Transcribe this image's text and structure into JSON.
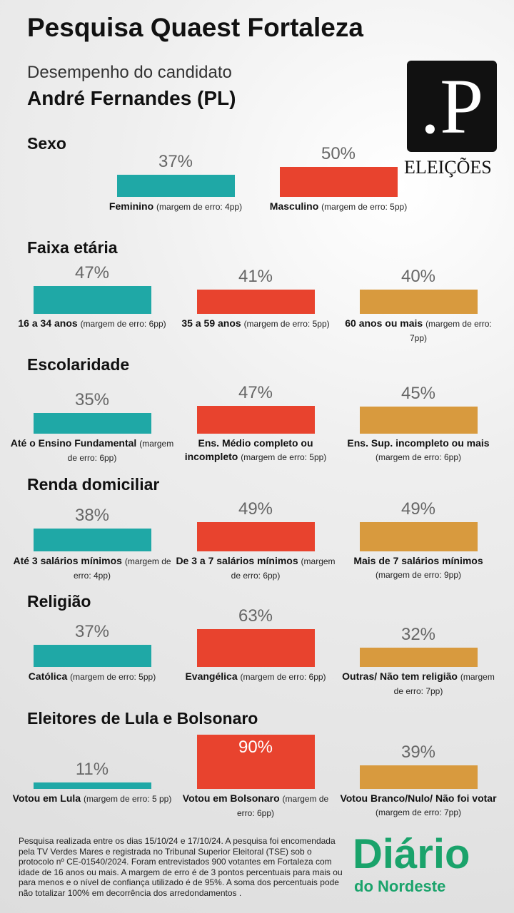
{
  "header": {
    "title": "Pesquisa Quaest Fortaleza",
    "subtitle": "Desempenho do candidato",
    "candidate": "André Fernandes (PL)",
    "logo_mark": ".P",
    "logo_text": "ELEIÇÕES"
  },
  "chart_data": [
    {
      "type": "bar",
      "title": "Sexo",
      "categories": [
        "Feminino",
        "Masculino"
      ],
      "notes": [
        "(margem de erro: 4pp)",
        "(margem de erro: 5pp)"
      ],
      "values": [
        37,
        50
      ],
      "value_labels": [
        "37%",
        "50%"
      ],
      "colors": [
        "#1fa8a6",
        "#e8432e"
      ]
    },
    {
      "type": "bar",
      "title": "Faixa etária",
      "categories": [
        "16 a 34 anos",
        "35 a 59 anos",
        "60 anos ou mais"
      ],
      "notes": [
        "(margem de erro: 6pp)",
        "(margem de erro: 5pp)",
        "(margem de erro: 7pp)"
      ],
      "values": [
        47,
        41,
        40
      ],
      "value_labels": [
        "47%",
        "41%",
        "40%"
      ],
      "colors": [
        "#1fa8a6",
        "#e8432e",
        "#d89a3e"
      ]
    },
    {
      "type": "bar",
      "title": "Escolaridade",
      "categories": [
        "Até o Ensino Fundamental",
        "Ens. Médio completo ou incompleto",
        "Ens. Sup. incompleto ou mais"
      ],
      "notes": [
        "(margem de erro: 6pp)",
        "(margem de erro: 5pp)",
        "(margem de erro: 6pp)"
      ],
      "values": [
        35,
        47,
        45
      ],
      "value_labels": [
        "35%",
        "47%",
        "45%"
      ],
      "colors": [
        "#1fa8a6",
        "#e8432e",
        "#d89a3e"
      ]
    },
    {
      "type": "bar",
      "title": "Renda domiciliar",
      "categories": [
        "Até 3 salários mínimos",
        "De 3 a 7 salários mínimos",
        "Mais de 7 salários mínimos"
      ],
      "notes": [
        "(margem de erro: 4pp)",
        "(margem de erro: 6pp)",
        "(margem de erro: 9pp)"
      ],
      "values": [
        38,
        49,
        49
      ],
      "value_labels": [
        "38%",
        "49%",
        "49%"
      ],
      "colors": [
        "#1fa8a6",
        "#e8432e",
        "#d89a3e"
      ]
    },
    {
      "type": "bar",
      "title": "Religião",
      "categories": [
        "Católica",
        "Evangélica",
        "Outras/ Não tem religião"
      ],
      "notes": [
        "(margem de erro: 5pp)",
        "(margem de erro: 6pp)",
        "(margem de erro: 7pp)"
      ],
      "values": [
        37,
        63,
        32
      ],
      "value_labels": [
        "37%",
        "63%",
        "32%"
      ],
      "colors": [
        "#1fa8a6",
        "#e8432e",
        "#d89a3e"
      ]
    },
    {
      "type": "bar",
      "title": "Eleitores de Lula e Bolsonaro",
      "categories": [
        "Votou em Lula",
        "Votou em Bolsonaro",
        "Votou Branco/Nulo/ Não foi votar"
      ],
      "notes": [
        "(margem de erro: 5 pp)",
        "(margem de erro: 6pp)",
        "(margem de erro: 7pp)"
      ],
      "values": [
        11,
        90,
        39
      ],
      "value_labels": [
        "11%",
        "90%",
        "39%"
      ],
      "colors": [
        "#1fa8a6",
        "#e8432e",
        "#d89a3e"
      ]
    }
  ],
  "footer": {
    "text": "Pesquisa realizada entre os dias 15/10/24 e  17/10/24. A pesquisa foi encomendada pela TV Verdes Mares e registrada no Tribunal Superior Eleitoral (TSE) sob o protocolo nº CE-01540/2024. Foram entrevistados 900 votantes em Fortaleza com idade de 16 anos ou mais. A margem de erro é de 3 pontos percentuais para mais ou para menos e o nível de confiança utilizado é de 95%. A soma dos percentuais pode não totalizar 100% em decorrência dos arredondamentos .",
    "brand": "Diário",
    "brand_sub": "do Nordeste"
  }
}
